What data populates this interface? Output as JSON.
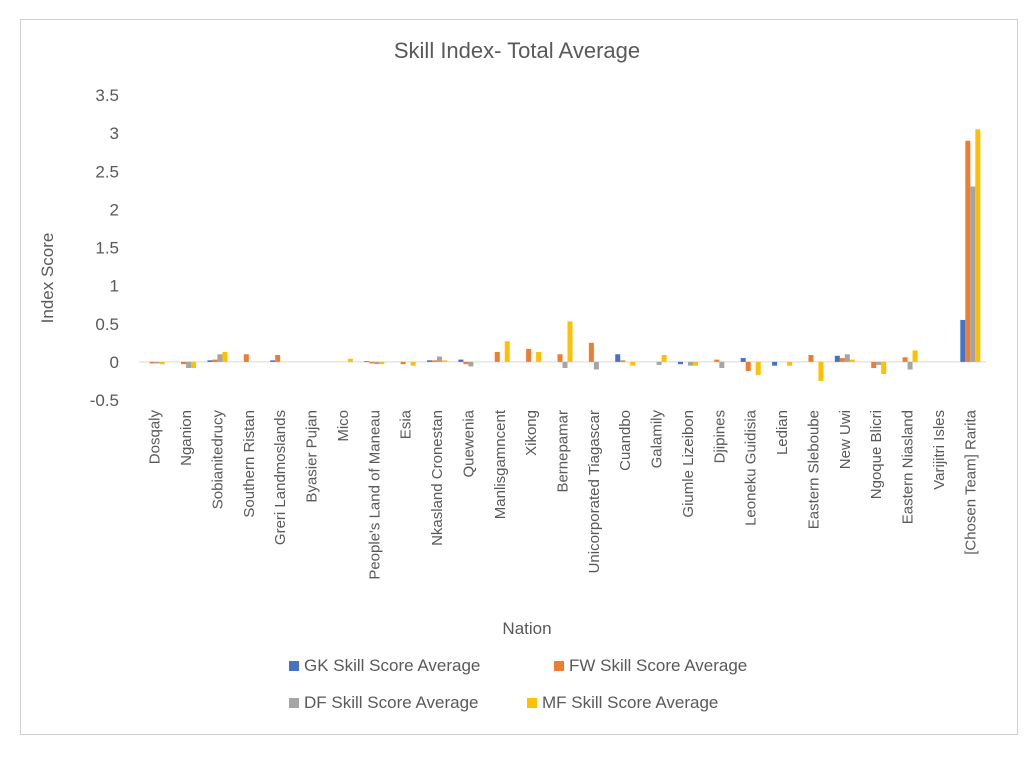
{
  "chart_data": {
    "type": "bar",
    "title": "Skill Index- Total Average",
    "xlabel": "Nation",
    "ylabel": "Index Score",
    "ylim": [
      -0.5,
      3.5
    ],
    "yticks": [
      -0.5,
      0,
      0.5,
      1,
      1.5,
      2,
      2.5,
      3,
      3.5
    ],
    "ytick_labels": [
      "-0.5",
      "0",
      "0.5",
      "1",
      "1.5",
      "2",
      "2.5",
      "3",
      "3.5"
    ],
    "grid": false,
    "legend_position": "bottom",
    "categories": [
      "Dosqaly",
      "Nganion",
      "Sobianitedrucy",
      "Southern Ristan",
      "Greri Landmoslands",
      "Byasier Pujan",
      "Mico",
      "People's Land of Maneau",
      "Esia",
      "Nkasland Cronestan",
      "Quewenia",
      "Manlisgamncent",
      "Xikong",
      "Bernepamar",
      "Unicorporated Tiagascar",
      "Cuandbo",
      "Galamily",
      "Giumle Lizeibon",
      "Djipines",
      "Leoneku Guidisia",
      "Ledian",
      "Eastern Sleboube",
      "New Uwi",
      "Ngoque Blicri",
      "Eastern Niasland",
      "Varijitri Isles",
      "[Chosen Team] Rarita"
    ],
    "series": [
      {
        "name": "GK Skill Score Average",
        "color": "#4472c4",
        "values": [
          0,
          0,
          0.02,
          0,
          0.02,
          0,
          0,
          0.01,
          0,
          0.02,
          0.03,
          0,
          0,
          0,
          0,
          0.1,
          0,
          -0.03,
          0,
          0.05,
          -0.05,
          0,
          0.08,
          0,
          0,
          0,
          0.55
        ]
      },
      {
        "name": "FW Skill Score Average",
        "color": "#ed7d31",
        "values": [
          -0.02,
          -0.03,
          0.03,
          0.1,
          0.09,
          0,
          0,
          -0.02,
          -0.03,
          0.02,
          -0.03,
          0.13,
          0.17,
          0.1,
          0.25,
          0.02,
          0,
          0,
          0.03,
          -0.12,
          0,
          0.09,
          0.05,
          -0.08,
          0.06,
          0,
          2.9
        ]
      },
      {
        "name": "DF Skill Score Average",
        "color": "#a5a5a5",
        "values": [
          -0.02,
          -0.08,
          0.1,
          0,
          0,
          0,
          0,
          -0.03,
          0,
          0.07,
          -0.06,
          0,
          0,
          -0.08,
          -0.1,
          0,
          -0.04,
          -0.05,
          -0.08,
          0,
          0,
          0,
          0.1,
          -0.04,
          -0.1,
          0,
          2.3
        ]
      },
      {
        "name": "MF Skill Score Average",
        "color": "#ffc000",
        "values": [
          -0.03,
          -0.08,
          0.13,
          0,
          0,
          0,
          0.04,
          -0.03,
          -0.05,
          0.02,
          0,
          0.27,
          0.13,
          0.53,
          0,
          -0.05,
          0.09,
          -0.05,
          0,
          -0.17,
          -0.05,
          -0.25,
          0.03,
          -0.16,
          0.15,
          0,
          3.05
        ]
      }
    ]
  }
}
